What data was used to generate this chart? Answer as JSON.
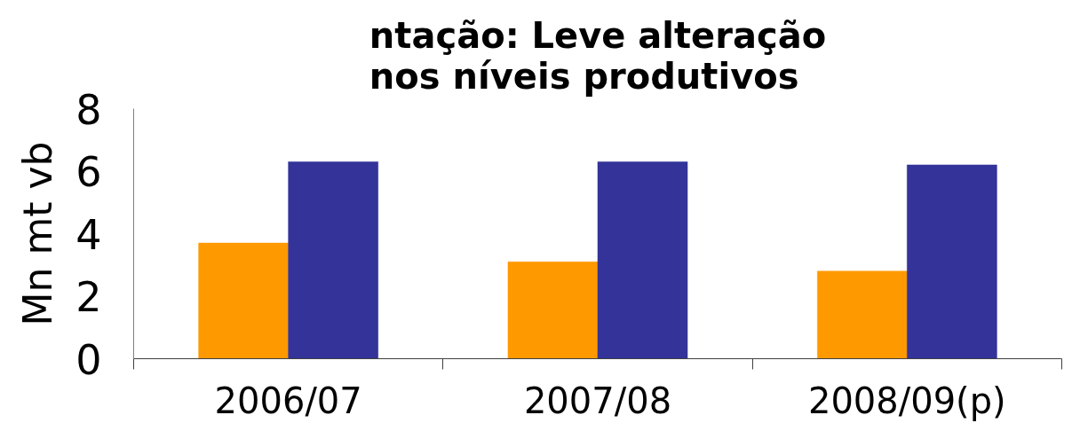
{
  "chart_data": {
    "type": "bar",
    "title": "ntação: Leve alteração nos níveis produtivos",
    "ylabel": "Mn mt vb",
    "categories": [
      "2006/07",
      "2007/08",
      "2008/09(p)"
    ],
    "series": [
      {
        "color": "#ff9900",
        "values": [
          3.7,
          3.1,
          2.8
        ]
      },
      {
        "color": "#333399",
        "values": [
          6.3,
          6.3,
          6.2
        ]
      }
    ],
    "ylim": [
      0,
      8
    ],
    "yticks": [
      0,
      2,
      4,
      6,
      8
    ]
  }
}
